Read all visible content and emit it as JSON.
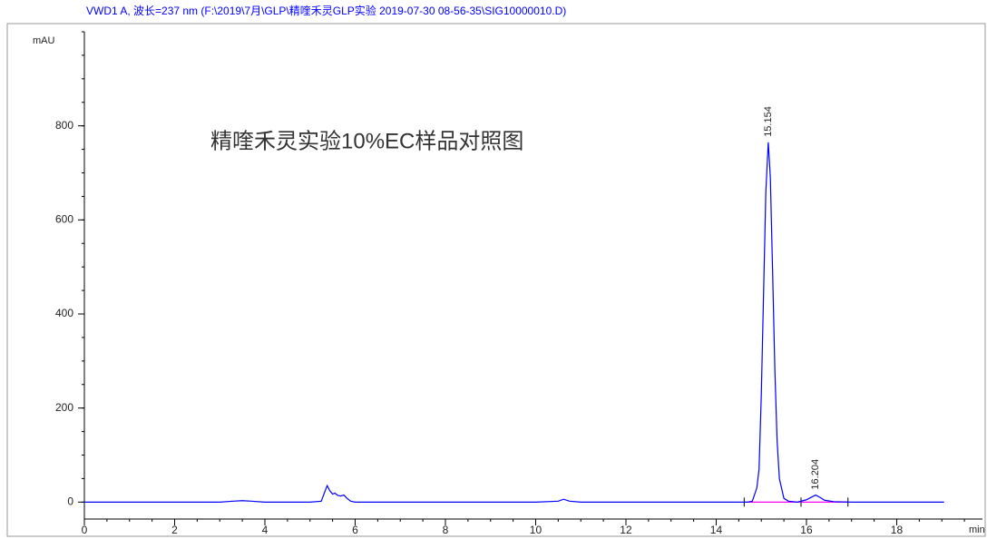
{
  "chart_data": {
    "type": "line",
    "title": "VWD1 A, 波长=237 nm (F:\\2019\\7月\\GLP\\精喹禾灵GLP实验 2019-07-30 08-56-35\\SIG10000010.D)",
    "annotation": "精喹禾灵实验10%EC样品对照图",
    "y_label": "mAU",
    "x_label": "min",
    "color": "#0000ff",
    "x": [
      0,
      1,
      2,
      3,
      3.3,
      3.5,
      3.7,
      4,
      5,
      5.25,
      5.32,
      5.38,
      5.44,
      5.5,
      5.55,
      5.62,
      5.68,
      5.75,
      5.82,
      5.9,
      6,
      7,
      8,
      9,
      10,
      10.5,
      10.62,
      10.75,
      11,
      12,
      13,
      14,
      14.7,
      14.8,
      14.9,
      14.95,
      15,
      15.05,
      15.1,
      15.154,
      15.2,
      15.25,
      15.3,
      15.35,
      15.4,
      15.5,
      15.6,
      15.8,
      16,
      16.1,
      16.204,
      16.3,
      16.4,
      16.6,
      17,
      18,
      19.05
    ],
    "values": [
      0,
      0,
      0,
      0,
      2,
      3,
      2,
      0,
      0,
      2,
      20,
      35,
      24,
      17,
      19,
      14,
      13,
      15,
      8,
      2,
      0,
      0,
      0,
      0,
      0,
      2,
      6,
      2,
      0,
      0,
      0,
      0,
      0,
      2,
      30,
      70,
      230,
      445,
      660,
      765,
      690,
      490,
      280,
      130,
      50,
      8,
      2,
      0,
      5,
      10,
      15,
      10,
      4,
      1,
      0,
      0,
      0
    ],
    "peak_labels": [
      {
        "x": 15.154,
        "y": 765
      },
      {
        "x": 16.204,
        "y": 15
      }
    ],
    "baselines": {
      "color": "#ff00ff",
      "segments": [
        {
          "x": [
            14.62,
            15.88
          ],
          "values": [
            0,
            0
          ]
        },
        {
          "x": [
            15.88,
            16.92
          ],
          "values": [
            0,
            0
          ]
        }
      ]
    },
    "xlim": [
      0,
      19.9
    ],
    "ylim": [
      -36,
      1000
    ],
    "xticks": [
      0,
      2,
      4,
      6,
      8,
      10,
      12,
      14,
      16,
      18
    ],
    "yticks": [
      0,
      200,
      400,
      600,
      800
    ],
    "minor_xtick_step": 0.5,
    "minor_ytick_step": 50
  }
}
